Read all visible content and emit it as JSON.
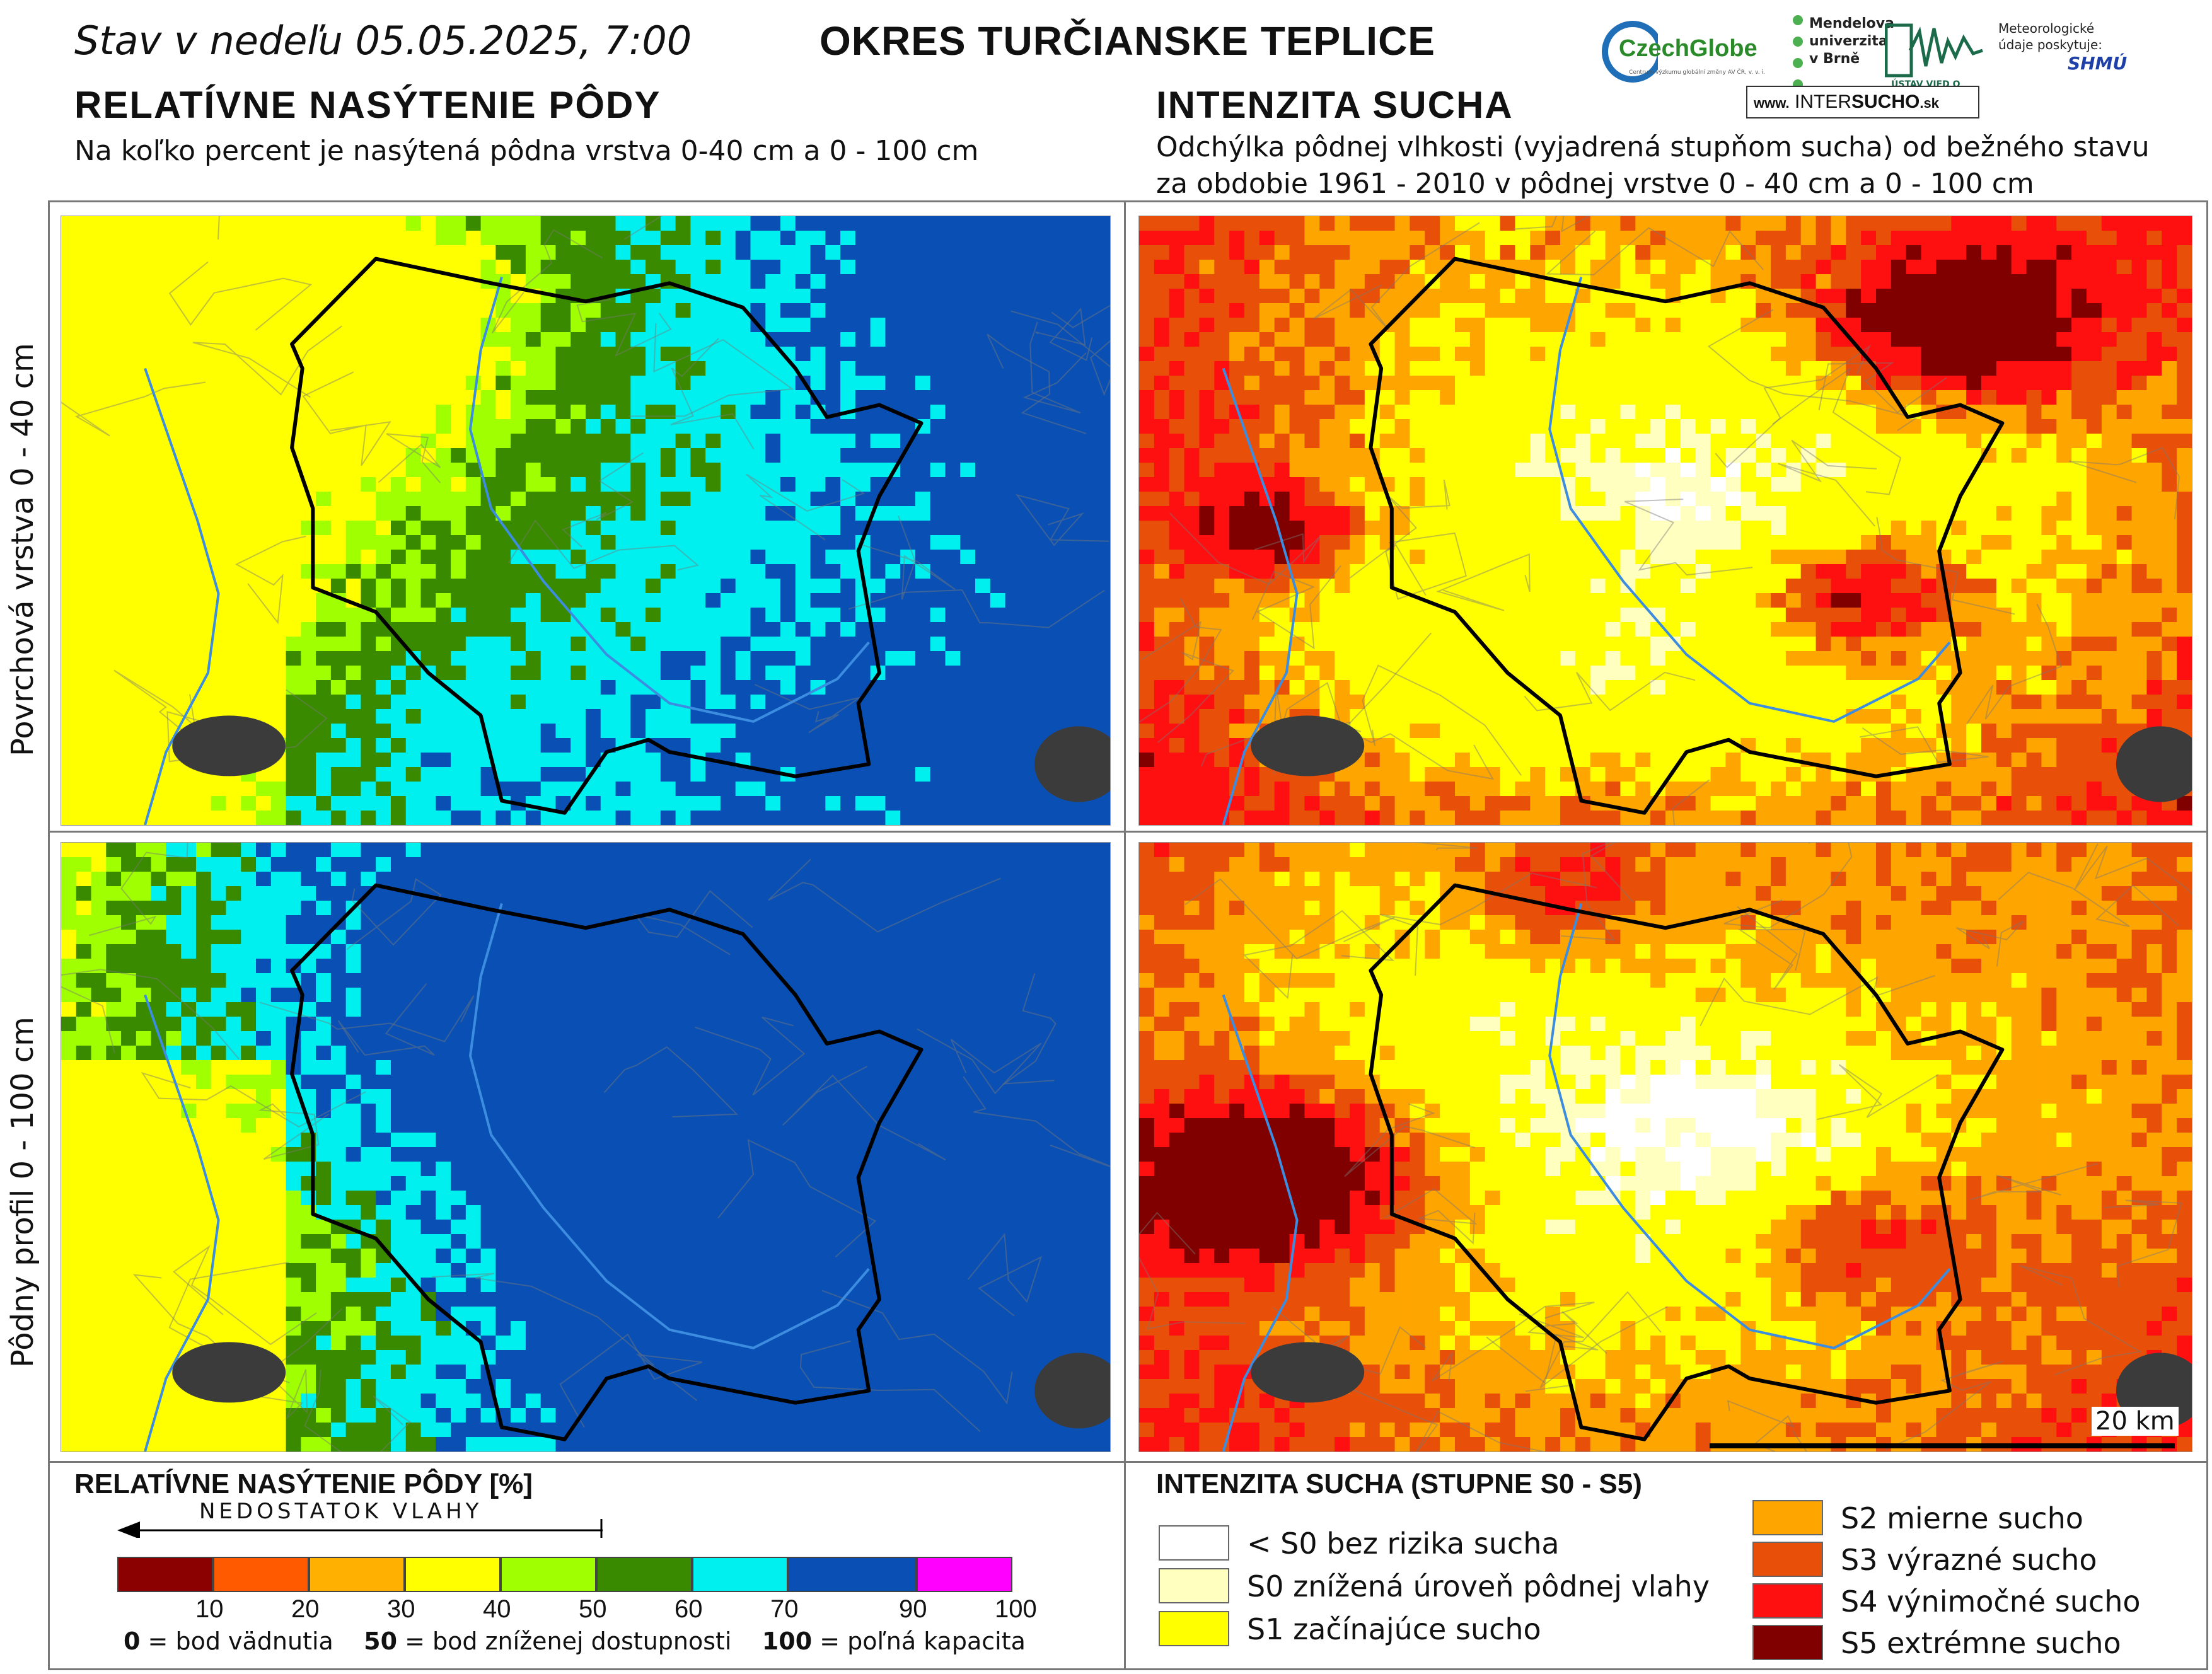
{
  "header": {
    "date_text": "Stav v nedeľu 05.05.2025, 7:00",
    "district_title": "OKRES  TURČIANSKE TEPLICE"
  },
  "logos": {
    "czechglobe": "CzechGlobe",
    "czechglobe_sub": "Centrum výzkumu globální změny AV ČR, v. v. i.",
    "mendel": "Mendelova univerzita v Brně",
    "ustav": "ÚSTAV VIED O ZEMI",
    "meteo_note": "Meteorologické údaje poskytuje:",
    "shmu": "SHMÚ",
    "intersucho_prefix": "www.",
    "intersucho_a": "INTER",
    "intersucho_b": "SUCHO",
    "intersucho_suffix": ".sk"
  },
  "left_section": {
    "title": "RELATÍVNE NASÝTENIE PÔDY",
    "subtitle": "Na koľko percent je nasýtená pôdna vrstva 0-40 cm a 0 - 100 cm"
  },
  "right_section": {
    "title": "INTENZITA SUCHA",
    "subtitle_line1": "Odchýlka pôdnej vlhkosti (vyjadrená stupňom sucha) od bežného stavu",
    "subtitle_line2": "za obdobie 1961 - 2010 v pôdnej vrstve 0 - 40 cm a 0 - 100 cm"
  },
  "row_labels": {
    "top": "Povrchová vrstva 0 - 40 cm",
    "bottom": "Pôdny profil 0 - 100 cm"
  },
  "scale_bar": {
    "label": "20 km"
  },
  "legend_saturation": {
    "title": "RELATÍVNE NASÝTENIE PÔDY [%]",
    "arrow_label": "NEDOSTATOK VLAHY",
    "colors": [
      "#8b0000",
      "#ff5a00",
      "#ffb000",
      "#ffff00",
      "#a0ff00",
      "#3a8a00",
      "#00f0f0",
      "#0a50b4",
      "#ff00ff"
    ],
    "ticks": [
      "10",
      "20",
      "30",
      "40",
      "50",
      "60",
      "70",
      "90",
      "100"
    ],
    "note_a_num": "0",
    "note_a_text": " = bod vädnutia",
    "note_b_num": "50",
    "note_b_text": " = bod zníženej dostupnosti",
    "note_c_num": "100",
    "note_c_text": " = poľná kapacita"
  },
  "legend_drought": {
    "title": "INTENZITA SUCHA (STUPNE S0 - S5)",
    "items": [
      {
        "label": "< S0 bez rizika sucha",
        "color": "#ffffff"
      },
      {
        "label": "S0 znížená úroveň pôdnej vlahy",
        "color": "#ffffc0"
      },
      {
        "label": "S1 začínajúce sucho",
        "color": "#ffff00"
      },
      {
        "label": "S2 mierne sucho",
        "color": "#ffa500"
      },
      {
        "label": "S3 výrazné sucho",
        "color": "#e8500a"
      },
      {
        "label": "S4 výnimočné sucho",
        "color": "#ff1010"
      },
      {
        "label": "S5 extrémne sucho",
        "color": "#800000"
      }
    ]
  }
}
